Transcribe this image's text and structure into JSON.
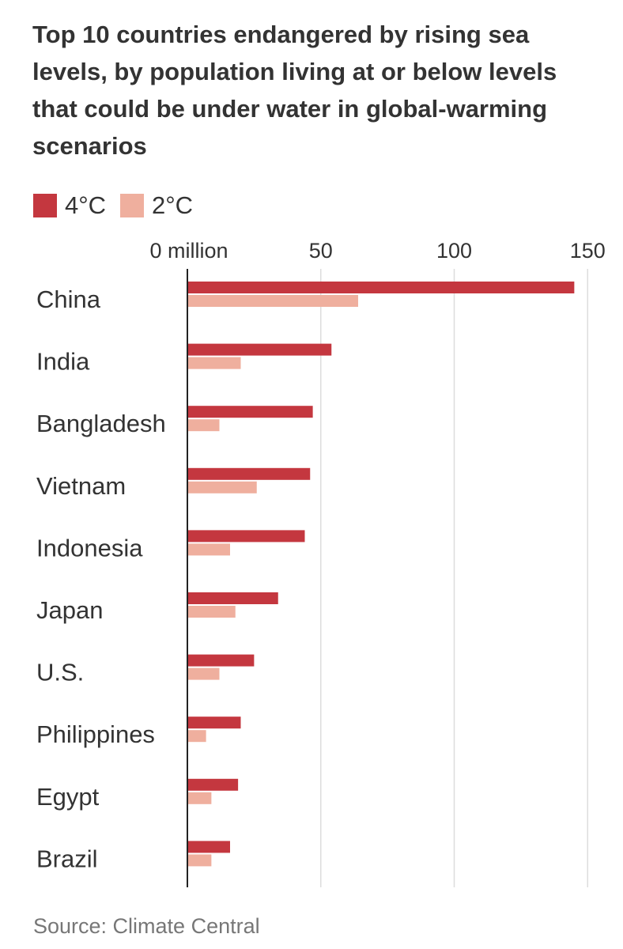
{
  "title": "Top 10 countries endangered by rising sea levels, by population living at or below levels that could be under water in global-warming scenarios",
  "source": "Source: Climate Central",
  "colors": {
    "four_c": "#c4373f",
    "two_c": "#efaf9e",
    "axis": "#222222",
    "grid": "#dddddd",
    "text": "#333333"
  },
  "chart_data": {
    "type": "bar",
    "orientation": "horizontal",
    "unit": "million",
    "categories": [
      "China",
      "India",
      "Bangladesh",
      "Vietnam",
      "Indonesia",
      "Japan",
      "U.S.",
      "Philippines",
      "Egypt",
      "Brazil"
    ],
    "series": [
      {
        "name": "4°C",
        "values": [
          145,
          54,
          47,
          46,
          44,
          34,
          25,
          20,
          19,
          16
        ]
      },
      {
        "name": "2°C",
        "values": [
          64,
          20,
          12,
          26,
          16,
          18,
          12,
          7,
          9,
          9
        ]
      }
    ],
    "xlim": [
      0,
      150
    ],
    "ticks": [
      0,
      50,
      100,
      150
    ],
    "tick_labels": [
      "0 million",
      "50",
      "100",
      "150"
    ],
    "grid": true,
    "legend_position": "top-left"
  }
}
